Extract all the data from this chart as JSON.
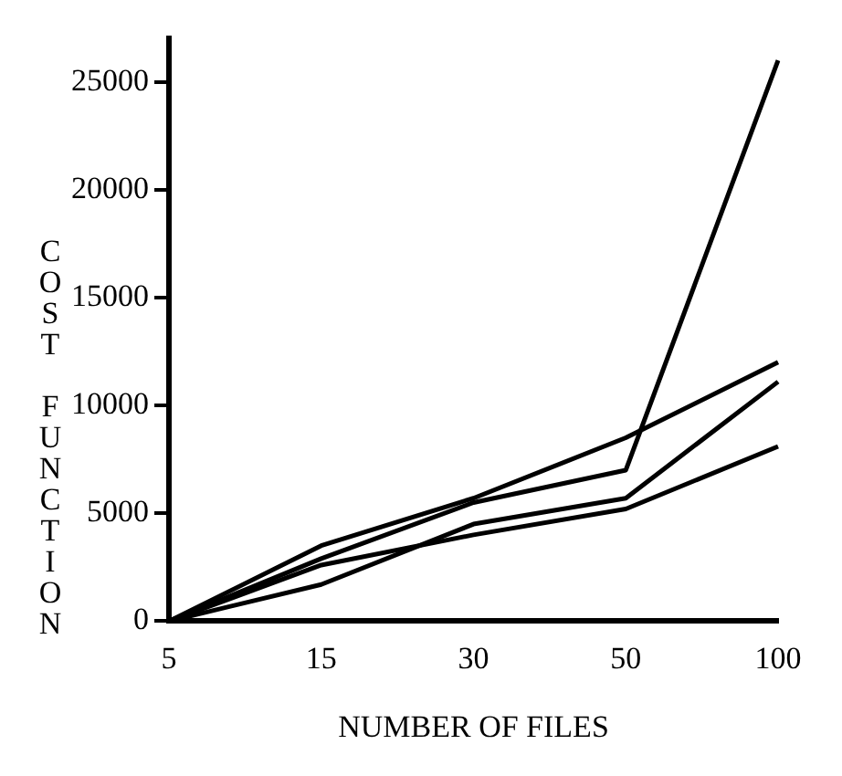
{
  "chart_data": {
    "type": "line",
    "xlabel": "NUMBER OF FILES",
    "ylabel": "COST FUNCTION",
    "categories": [
      "5",
      "15",
      "30",
      "50",
      "100"
    ],
    "series": [
      {
        "color": "#000000",
        "values": [
          0,
          3500,
          5700,
          8500,
          12000
        ]
      },
      {
        "color": "#000000",
        "values": [
          0,
          2900,
          5500,
          7000,
          26000
        ]
      },
      {
        "color": "#000000",
        "values": [
          0,
          1700,
          4500,
          5700,
          11100
        ]
      },
      {
        "color": "#000000",
        "values": [
          0,
          2600,
          4000,
          5200,
          8100
        ]
      }
    ],
    "ylim": [
      0,
      27000
    ],
    "yticks": [
      0,
      5000,
      10000,
      15000,
      20000,
      25000
    ],
    "grid": false,
    "legend": false,
    "marker": "none",
    "line_style": "solid"
  }
}
